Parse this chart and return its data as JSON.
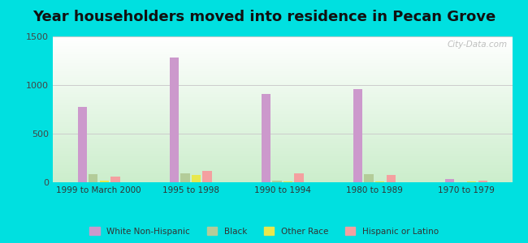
{
  "title": "Year householders moved into residence in Pecan Grove",
  "categories": [
    "1999 to March 2000",
    "1995 to 1998",
    "1990 to 1994",
    "1980 to 1989",
    "1970 to 1979"
  ],
  "series": {
    "White Non-Hispanic": [
      775,
      1280,
      910,
      960,
      30
    ],
    "Black": [
      80,
      90,
      20,
      85,
      0
    ],
    "Other Race": [
      15,
      75,
      10,
      10,
      12
    ],
    "Hispanic or Latino": [
      55,
      115,
      95,
      75,
      18
    ]
  },
  "colors": {
    "White Non-Hispanic": "#cc99cc",
    "Black": "#b3cc99",
    "Other Race": "#e8e84d",
    "Hispanic or Latino": "#f4a0a0"
  },
  "ylim": [
    0,
    1500
  ],
  "yticks": [
    0,
    500,
    1000,
    1500
  ],
  "background_color_outer": "#00e0e0",
  "grid_color": "#cccccc",
  "title_fontsize": 13,
  "watermark": "City-Data.com"
}
